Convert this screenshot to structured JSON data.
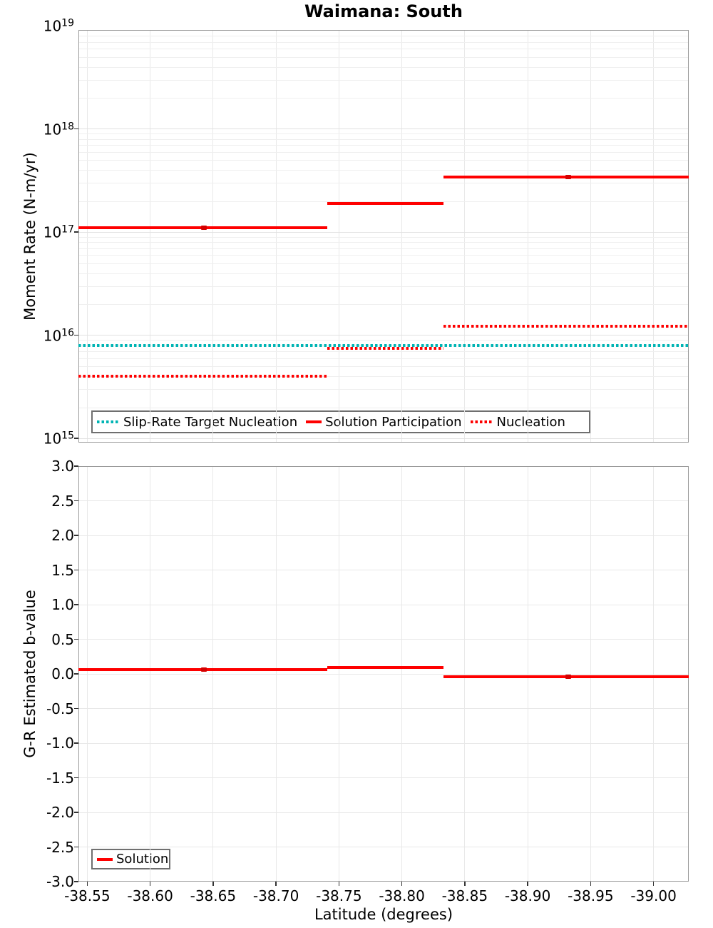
{
  "title": "Waimana: South",
  "colors": {
    "solution_red": "#fe0000",
    "slip_rate_cyan": "#00b4b4",
    "junction_red": "#d40000",
    "grid_minor": "#efefef",
    "grid_major": "#e2e2e2",
    "axis_border": "#9b9b9b"
  },
  "chart_data": [
    {
      "type": "line",
      "step": true,
      "title": "Waimana: South",
      "ylabel": "Moment Rate (N-m/yr)",
      "yscale": "log",
      "ylim": [
        1000000000000000.0,
        1e+19
      ],
      "ytick_exponents": [
        19,
        18,
        17,
        16,
        15
      ],
      "xlim": [
        -38.543,
        -39.028
      ],
      "x_reversed": true,
      "grid": true,
      "legend_position": "lower left",
      "series": [
        {
          "name": "Slip-Rate Target Nucleation",
          "color": "#00b4b4",
          "style": "dotted",
          "segments": [
            {
              "x0": -38.543,
              "x1": -39.028,
              "y": 8000000000000000.0
            }
          ]
        },
        {
          "name": "Solution Participation",
          "color": "#fe0000",
          "style": "solid",
          "junction_lats": [
            -38.643,
            -38.932
          ],
          "segments": [
            {
              "x0": -38.543,
              "x1": -38.741,
              "y": 1.1e+17
            },
            {
              "x0": -38.741,
              "x1": -38.833,
              "y": 1.9e+17
            },
            {
              "x0": -38.833,
              "x1": -39.028,
              "y": 3.45e+17
            }
          ]
        },
        {
          "name": "Nucleation",
          "color": "#fe0000",
          "style": "dotted",
          "segments": [
            {
              "x0": -38.543,
              "x1": -38.741,
              "y": 4000000000000000.0
            },
            {
              "x0": -38.741,
              "x1": -38.833,
              "y": 7500000000000000.0
            },
            {
              "x0": -38.833,
              "x1": -39.028,
              "y": 1.23e+16
            }
          ]
        }
      ]
    },
    {
      "type": "line",
      "step": true,
      "ylabel": "G-R Estimated b-value",
      "xlabel": "Latitude (degrees)",
      "ylim": [
        -3.0,
        3.0
      ],
      "ytick_labels": [
        "3.0",
        "2.5",
        "2.0",
        "1.5",
        "1.0",
        "0.5",
        "0.0",
        "-0.5",
        "-1.0",
        "-1.5",
        "-2.0",
        "-2.5",
        "-3.0"
      ],
      "ytick_values": [
        3.0,
        2.5,
        2.0,
        1.5,
        1.0,
        0.5,
        0.0,
        -0.5,
        -1.0,
        -1.5,
        -2.0,
        -2.5,
        -3.0
      ],
      "xlim": [
        -38.543,
        -39.028
      ],
      "x_reversed": true,
      "xtick_values": [
        -38.55,
        -38.6,
        -38.65,
        -38.7,
        -38.75,
        -38.8,
        -38.85,
        -38.9,
        -38.95,
        -39.0
      ],
      "xtick_labels": [
        "-38.55",
        "-38.60",
        "-38.65",
        "-38.70",
        "-38.75",
        "-38.80",
        "-38.85",
        "-38.90",
        "-38.95",
        "-39.00"
      ],
      "grid": true,
      "legend_position": "lower left",
      "series": [
        {
          "name": "Solution",
          "color": "#fe0000",
          "style": "solid",
          "junction_lats": [
            -38.643,
            -38.932
          ],
          "segments": [
            {
              "x0": -38.543,
              "x1": -38.741,
              "y": 0.06
            },
            {
              "x0": -38.741,
              "x1": -38.833,
              "y": 0.09
            },
            {
              "x0": -38.833,
              "x1": -39.028,
              "y": -0.04
            }
          ]
        }
      ]
    }
  ]
}
